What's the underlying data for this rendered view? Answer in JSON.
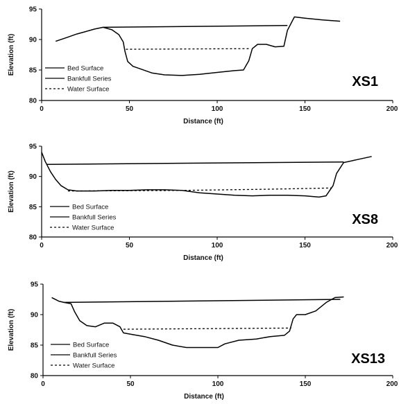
{
  "chart_data": [
    {
      "type": "line",
      "panel_label": "XS1",
      "xlabel": "Distance (ft)",
      "ylabel": "Elevation (ft)",
      "xlim": [
        0,
        200
      ],
      "ylim": [
        80,
        95
      ],
      "xticks": [
        "0",
        "50",
        "100",
        "150",
        "200"
      ],
      "yticks": [
        "80",
        "85",
        "90",
        "95"
      ],
      "legend": "bottom-left",
      "series": [
        {
          "name": "Bed Surface",
          "style": "solid",
          "points": [
            [
              8,
              89.7
            ],
            [
              14,
              90.3
            ],
            [
              20,
              90.9
            ],
            [
              25,
              91.3
            ],
            [
              30,
              91.7
            ],
            [
              35,
              92.0
            ],
            [
              40,
              91.6
            ],
            [
              44,
              90.8
            ],
            [
              46.5,
              89.6
            ],
            [
              47.5,
              88.0
            ],
            [
              49,
              86.4
            ],
            [
              52,
              85.6
            ],
            [
              57,
              85.1
            ],
            [
              63,
              84.5
            ],
            [
              70,
              84.2
            ],
            [
              80,
              84.1
            ],
            [
              90,
              84.3
            ],
            [
              100,
              84.6
            ],
            [
              110,
              84.9
            ],
            [
              115,
              85.0
            ],
            [
              118,
              86.5
            ],
            [
              120,
              88.5
            ],
            [
              123,
              89.2
            ],
            [
              128,
              89.2
            ],
            [
              133,
              88.8
            ],
            [
              138,
              88.9
            ],
            [
              140,
              91.5
            ],
            [
              144,
              93.7
            ],
            [
              150,
              93.5
            ],
            [
              160,
              93.2
            ],
            [
              170,
              93.0
            ]
          ]
        },
        {
          "name": "Bankfull Series",
          "style": "solid",
          "points": [
            [
              35,
              92.0
            ],
            [
              140,
              92.3
            ]
          ]
        },
        {
          "name": "Water Surface",
          "style": "dotted",
          "points": [
            [
              48,
              88.4
            ],
            [
              118,
              88.5
            ]
          ]
        }
      ]
    },
    {
      "type": "line",
      "panel_label": "XS8",
      "xlabel": "Distance (ft)",
      "ylabel": "Elevation (ft)",
      "xlim": [
        0,
        200
      ],
      "ylim": [
        80,
        95
      ],
      "xticks": [
        "0",
        "50",
        "100",
        "150",
        "200"
      ],
      "yticks": [
        "80",
        "85",
        "90",
        "95"
      ],
      "legend": "bottom-left",
      "series": [
        {
          "name": "Bed Surface",
          "style": "solid",
          "points": [
            [
              0,
              94.0
            ],
            [
              2,
              92.5
            ],
            [
              5,
              90.8
            ],
            [
              8,
              89.5
            ],
            [
              11,
              88.5
            ],
            [
              15,
              87.8
            ],
            [
              20,
              87.6
            ],
            [
              30,
              87.6
            ],
            [
              40,
              87.7
            ],
            [
              50,
              87.7
            ],
            [
              60,
              87.8
            ],
            [
              70,
              87.8
            ],
            [
              80,
              87.7
            ],
            [
              90,
              87.3
            ],
            [
              100,
              87.1
            ],
            [
              110,
              86.9
            ],
            [
              120,
              86.8
            ],
            [
              130,
              86.9
            ],
            [
              140,
              86.9
            ],
            [
              150,
              86.8
            ],
            [
              158,
              86.6
            ],
            [
              162,
              86.8
            ],
            [
              166,
              88.5
            ],
            [
              168,
              90.5
            ],
            [
              172,
              92.3
            ],
            [
              180,
              92.8
            ],
            [
              188,
              93.3
            ]
          ]
        },
        {
          "name": "Bankfull Series",
          "style": "solid",
          "points": [
            [
              3,
              92.0
            ],
            [
              172,
              92.4
            ]
          ]
        },
        {
          "name": "Water Surface",
          "style": "dotted",
          "points": [
            [
              15,
              87.6
            ],
            [
              80,
              87.7
            ],
            [
              130,
              87.9
            ],
            [
              165,
              88.1
            ]
          ]
        }
      ]
    },
    {
      "type": "line",
      "panel_label": "XS13",
      "xlabel": "Distance (ft)",
      "ylabel": "Elevation (ft)",
      "xlim": [
        0,
        200
      ],
      "ylim": [
        80,
        95
      ],
      "xticks": [
        "0",
        "50",
        "100",
        "150",
        "200"
      ],
      "yticks": [
        "80",
        "85",
        "90",
        "95"
      ],
      "legend": "bottom-left",
      "series": [
        {
          "name": "Bed Surface",
          "style": "solid",
          "points": [
            [
              5,
              92.8
            ],
            [
              9,
              92.2
            ],
            [
              12,
              92.0
            ],
            [
              16,
              91.8
            ],
            [
              18,
              90.5
            ],
            [
              21,
              89.0
            ],
            [
              25,
              88.2
            ],
            [
              30,
              88.0
            ],
            [
              35,
              88.6
            ],
            [
              40,
              88.6
            ],
            [
              44,
              88.0
            ],
            [
              46,
              87.0
            ],
            [
              50,
              86.8
            ],
            [
              58,
              86.4
            ],
            [
              66,
              85.8
            ],
            [
              74,
              85.0
            ],
            [
              82,
              84.6
            ],
            [
              90,
              84.6
            ],
            [
              100,
              84.6
            ],
            [
              104,
              85.2
            ],
            [
              112,
              85.8
            ],
            [
              122,
              86.0
            ],
            [
              130,
              86.4
            ],
            [
              138,
              86.6
            ],
            [
              141,
              87.3
            ],
            [
              143,
              89.3
            ],
            [
              145,
              90.0
            ],
            [
              150,
              90.0
            ],
            [
              156,
              90.6
            ],
            [
              162,
              92.0
            ],
            [
              167,
              92.8
            ],
            [
              172,
              92.9
            ]
          ]
        },
        {
          "name": "Bankfull Series",
          "style": "solid",
          "points": [
            [
              12,
              92.0
            ],
            [
              170,
              92.5
            ]
          ]
        },
        {
          "name": "Water Surface",
          "style": "dotted",
          "points": [
            [
              46,
              87.6
            ],
            [
              142,
              87.8
            ]
          ]
        }
      ]
    }
  ]
}
